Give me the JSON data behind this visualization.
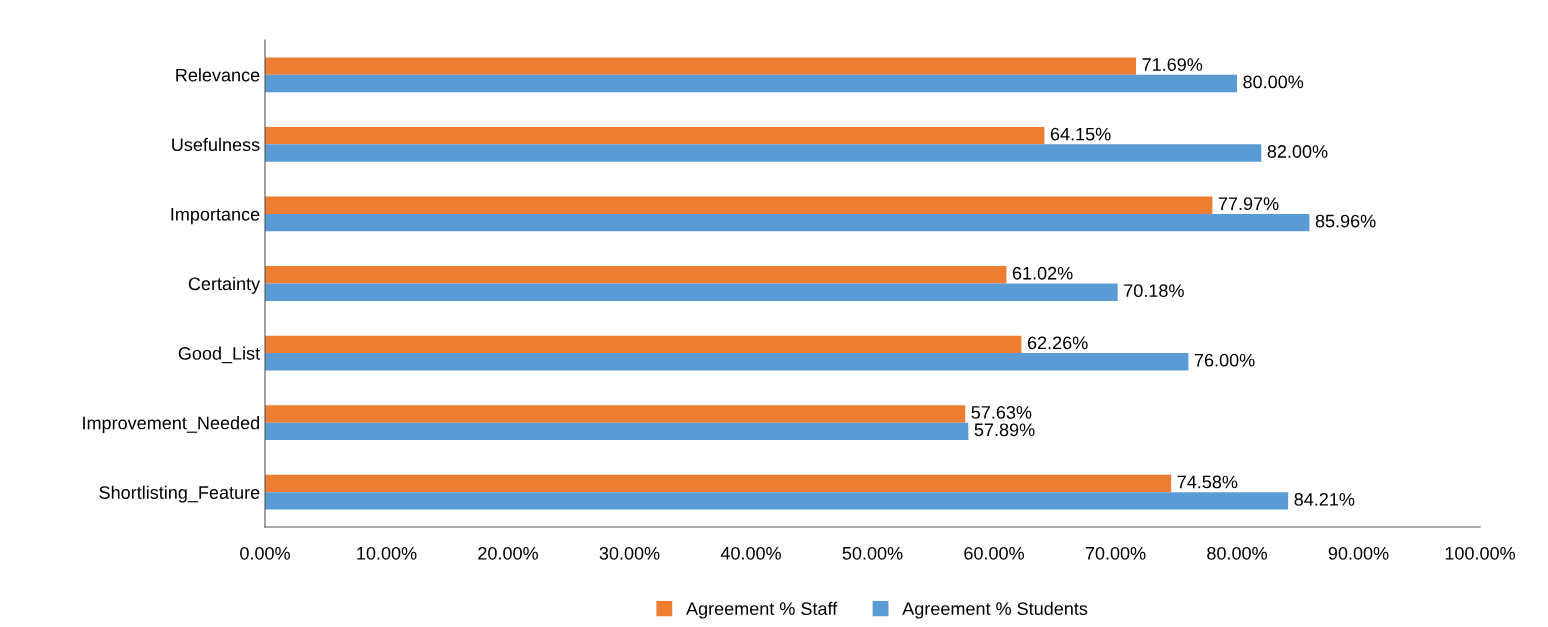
{
  "chart_data": {
    "type": "bar",
    "orientation": "horizontal",
    "categories": [
      "Relevance",
      "Usefulness",
      "Importance",
      "Certainty",
      "Good_List",
      "Improvement_Needed",
      "Shortlisting_Feature"
    ],
    "series": [
      {
        "name": "Agreement % Staff",
        "color": "#ed7d31",
        "values": [
          71.69,
          64.15,
          77.97,
          61.02,
          62.26,
          57.63,
          74.58
        ],
        "value_labels": [
          "71.69%",
          "64.15%",
          "77.97%",
          "61.02%",
          "62.26%",
          "57.63%",
          "74.58%"
        ]
      },
      {
        "name": "Agreement % Students",
        "color": "#5b9bd5",
        "values": [
          80.0,
          82.0,
          85.96,
          70.18,
          76.0,
          57.89,
          84.21
        ],
        "value_labels": [
          "80.00%",
          "82.00%",
          "85.96%",
          "70.18%",
          "76.00%",
          "57.89%",
          "84.21%"
        ]
      }
    ],
    "xlim": [
      0,
      100
    ],
    "xticks": [
      {
        "value": 0,
        "label": "0.00%"
      },
      {
        "value": 10,
        "label": "10.00%"
      },
      {
        "value": 20,
        "label": "20.00%"
      },
      {
        "value": 30,
        "label": "30.00%"
      },
      {
        "value": 40,
        "label": "40.00%"
      },
      {
        "value": 50,
        "label": "50.00%"
      },
      {
        "value": 60,
        "label": "60.00%"
      },
      {
        "value": 70,
        "label": "70.00%"
      },
      {
        "value": 80,
        "label": "80.00%"
      },
      {
        "value": 90,
        "label": "90.00%"
      },
      {
        "value": 100,
        "label": "100.00%"
      }
    ],
    "grid": false,
    "legend": "bottom"
  }
}
